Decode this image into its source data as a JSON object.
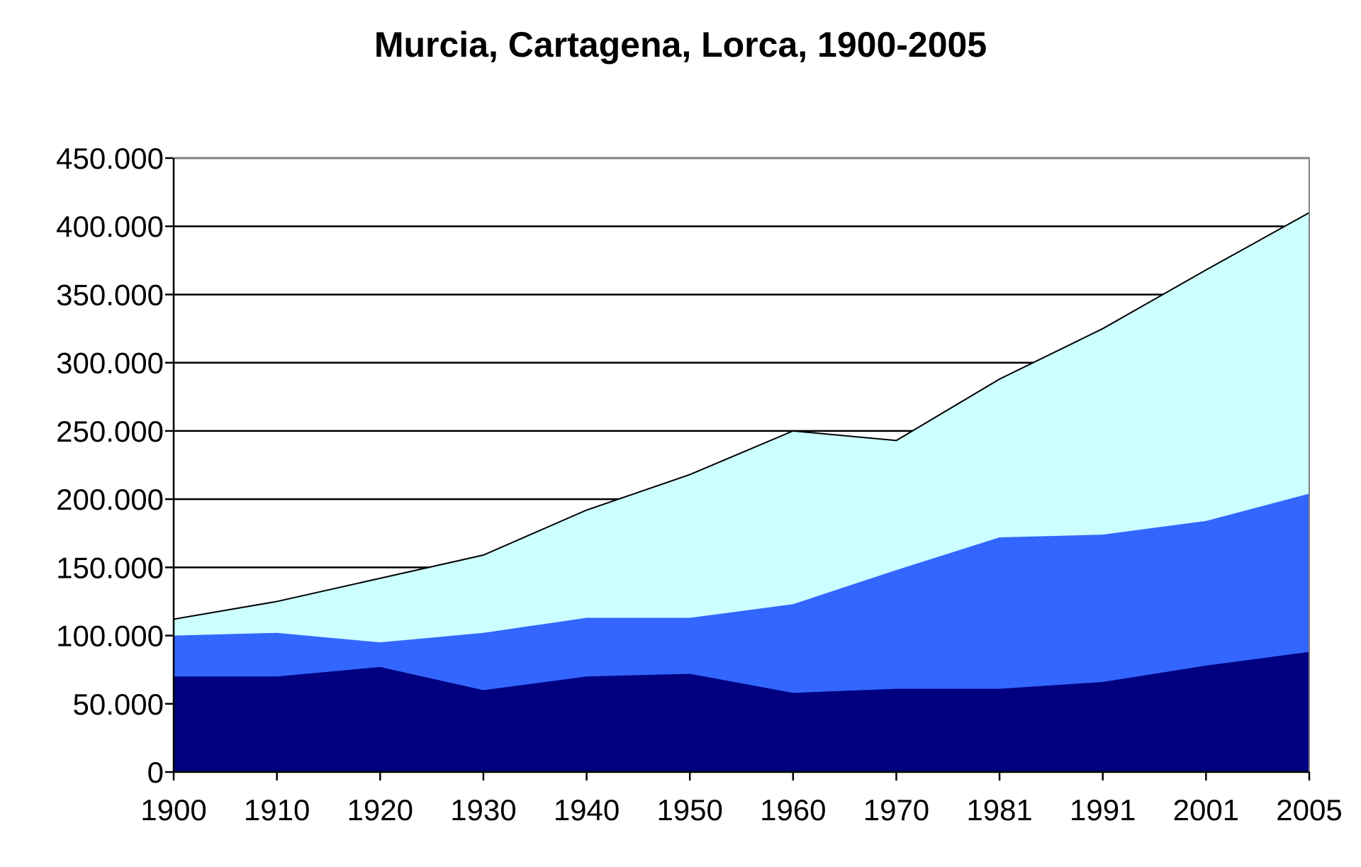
{
  "chart_data": {
    "type": "area",
    "stacked": true,
    "title": "Murcia, Cartagena, Lorca, 1900-2005",
    "xlabel": "",
    "ylabel": "",
    "categories": [
      "1900",
      "1910",
      "1920",
      "1930",
      "1940",
      "1950",
      "1960",
      "1970",
      "1981",
      "1991",
      "2001",
      "2005"
    ],
    "ylim": [
      0,
      450000
    ],
    "yticks": [
      0,
      50000,
      100000,
      150000,
      200000,
      250000,
      300000,
      350000,
      400000,
      450000
    ],
    "ytick_labels": [
      "0",
      "50.000",
      "100.000",
      "150.000",
      "200.000",
      "250.000",
      "300.000",
      "350.000",
      "400.000",
      "450.000"
    ],
    "grid": "horizontal",
    "legend": "none",
    "series": [
      {
        "color": "#000080",
        "values": [
          70000,
          70000,
          77000,
          60000,
          70000,
          72000,
          58000,
          61000,
          61000,
          66000,
          78000,
          88000
        ]
      },
      {
        "color": "#3366ff",
        "values": [
          30000,
          32000,
          18000,
          42000,
          43000,
          41000,
          65000,
          87000,
          111000,
          108000,
          106000,
          116000
        ]
      },
      {
        "color": "#ccffff",
        "values": [
          12000,
          23000,
          47000,
          57000,
          79000,
          105000,
          127000,
          95000,
          116000,
          151000,
          184000,
          206000
        ]
      }
    ]
  }
}
